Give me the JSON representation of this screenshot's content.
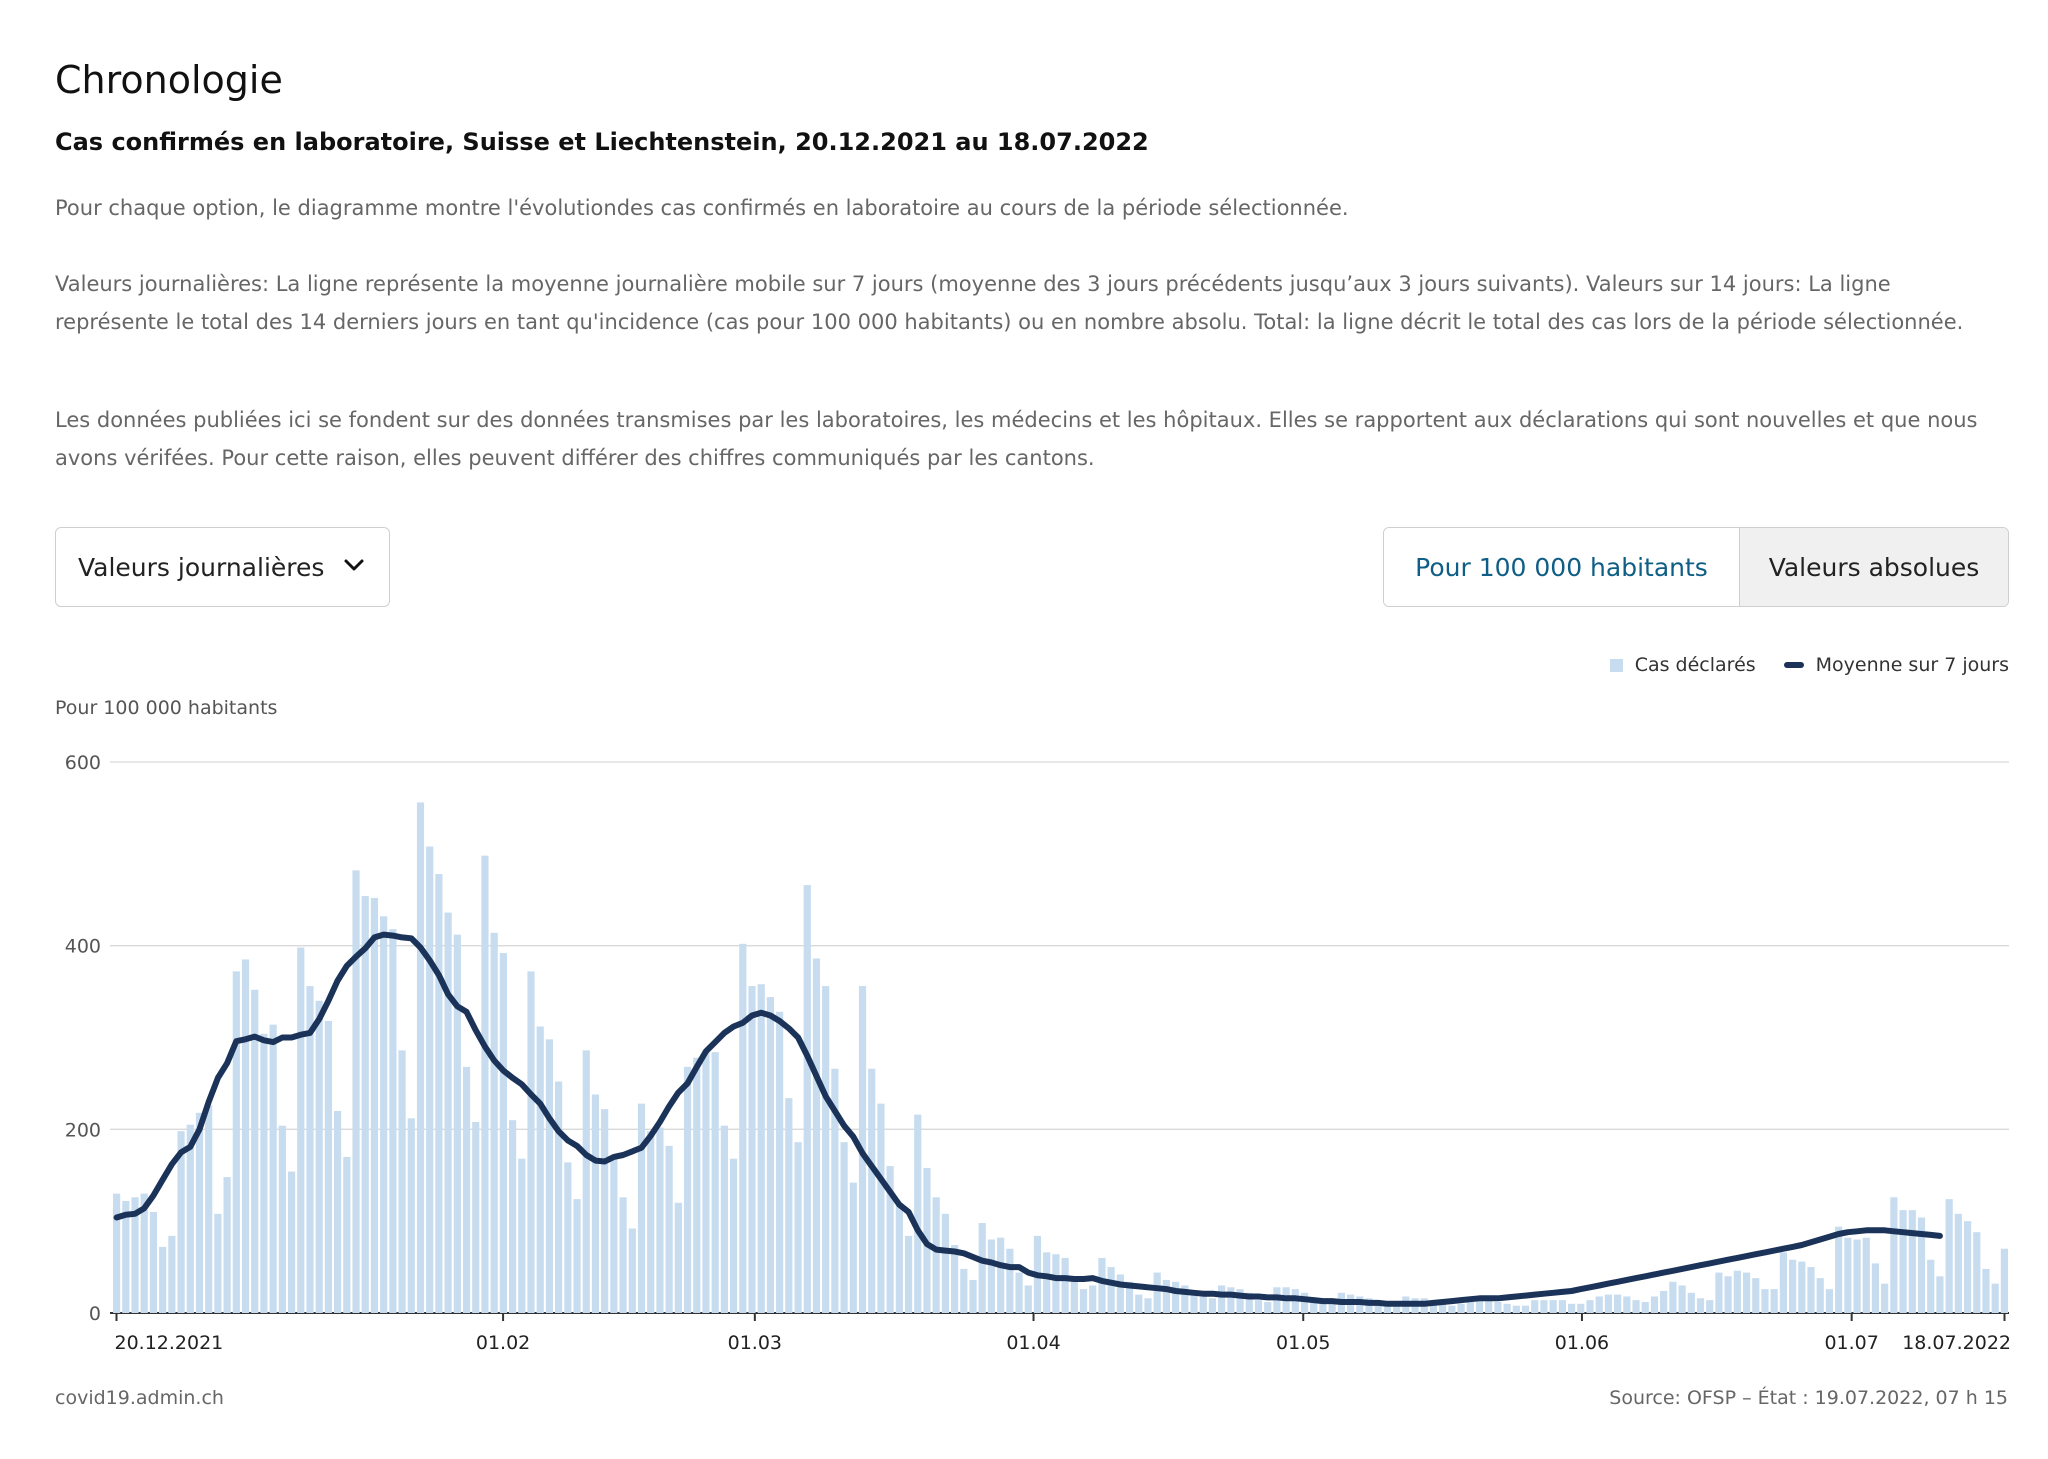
{
  "header": {
    "title": "Chronologie",
    "subtitle": "Cas confirmés en laboratoire, Suisse et Liechtenstein, 20.12.2021 au 18.07.2022"
  },
  "description": {
    "p1": "Pour chaque option, le diagramme montre l'évolutiondes cas confirmés en laboratoire au cours de la période sélectionnée.",
    "p2": "Valeurs journalières: La ligne représente la moyenne journalière mobile sur 7 jours (moyenne des 3 jours précédents jusqu’aux 3 jours suivants). Valeurs sur 14 jours: La ligne représente le total des 14 derniers jours en tant qu'incidence (cas pour 100 000 habitants) ou en nombre absolu. Total: la ligne décrit le total des cas lors de la période sélectionnée.",
    "p3": "Les données publiées ici se fondent sur des données transmises par les laboratoires, les médecins et les hôpitaux. Elles se rapportent aux déclarations qui sont nouvelles et que nous avons vérifées. Pour cette raison, elles peuvent différer des chiffres communiqués par les cantons."
  },
  "controls": {
    "dropdown_value": "Valeurs journalières",
    "toggle_option_1": "Pour 100 000 habitants",
    "toggle_option_2": "Valeurs absolues"
  },
  "legend": {
    "bars": "Cas déclarés",
    "line": "Moyenne sur 7 jours"
  },
  "footer": {
    "source_site": "covid19.admin.ch",
    "source": "Source: OFSP – État : 19.07.2022, 07 h 15"
  },
  "colors": {
    "bar": "#c7dcef",
    "line": "#1b3358",
    "active_toggle_text": "#0f5e86"
  },
  "chart_data": {
    "type": "bar",
    "ylabel": "Pour 100 000 habitants",
    "ylim": [
      0,
      600
    ],
    "yticks": [
      0,
      200,
      400,
      600
    ],
    "x_start": "2021-12-20",
    "x_end": "2022-07-18",
    "xticks": [
      {
        "date": "2021-12-20",
        "label": "20.12.2021"
      },
      {
        "date": "2022-02-01",
        "label": "01.02"
      },
      {
        "date": "2022-03-01",
        "label": "01.03"
      },
      {
        "date": "2022-04-01",
        "label": "01.04"
      },
      {
        "date": "2022-05-01",
        "label": "01.05"
      },
      {
        "date": "2022-06-01",
        "label": "01.06"
      },
      {
        "date": "2022-07-01",
        "label": "01.07"
      },
      {
        "date": "2022-07-18",
        "label": "18.07.2022"
      }
    ],
    "grid": true,
    "legend_position": "top-right",
    "series": [
      {
        "name": "Cas déclarés",
        "kind": "bar",
        "color": "#c7dcef",
        "values": [
          130,
          122,
          126,
          130,
          110,
          72,
          84,
          198,
          205,
          218,
          226,
          108,
          148,
          372,
          385,
          352,
          304,
          314,
          204,
          154,
          398,
          356,
          340,
          318,
          220,
          170,
          482,
          454,
          452,
          432,
          418,
          286,
          212,
          556,
          508,
          478,
          436,
          412,
          268,
          208,
          498,
          414,
          392,
          210,
          168,
          372,
          312,
          298,
          252,
          164,
          124,
          286,
          238,
          222,
          168,
          126,
          92,
          228,
          198,
          202,
          182,
          120,
          268,
          278,
          286,
          284,
          204,
          168,
          402,
          356,
          358,
          344,
          328,
          234,
          186,
          466,
          386,
          356,
          266,
          186,
          142,
          356,
          266,
          228,
          160,
          120,
          84,
          216,
          158,
          126,
          108,
          74,
          48,
          36,
          98,
          80,
          82,
          70,
          44,
          30,
          84,
          66,
          64,
          60,
          38,
          26,
          30,
          60,
          50,
          42,
          34,
          20,
          16,
          44,
          36,
          34,
          30,
          22,
          20,
          16,
          30,
          28,
          26,
          22,
          14,
          12,
          28,
          28,
          26,
          22,
          16,
          12,
          12,
          22,
          20,
          18,
          16,
          12,
          10,
          12,
          18,
          16,
          16,
          14,
          10,
          8,
          10,
          18,
          14,
          14,
          12,
          10,
          8,
          8,
          14,
          14,
          14,
          14,
          10,
          10,
          14,
          18,
          20,
          20,
          18,
          14,
          12,
          18,
          24,
          34,
          30,
          22,
          16,
          14,
          44,
          40,
          46,
          44,
          38,
          26,
          26,
          66,
          58,
          56,
          50,
          38,
          26,
          94,
          82,
          80,
          82,
          54,
          32,
          126,
          112,
          112,
          104,
          58,
          40,
          124,
          108,
          100,
          88,
          48,
          32,
          70
        ]
      },
      {
        "name": "Moyenne sur 7 jours",
        "kind": "line",
        "color": "#1b3358",
        "values": [
          104,
          107,
          108,
          114,
          128,
          145,
          162,
          175,
          181,
          200,
          230,
          256,
          272,
          296,
          298,
          301,
          297,
          295,
          300,
          300,
          303,
          305,
          320,
          340,
          362,
          378,
          388,
          397,
          409,
          412,
          411,
          409,
          408,
          398,
          384,
          368,
          347,
          334,
          328,
          308,
          290,
          275,
          264,
          256,
          249,
          238,
          228,
          212,
          198,
          188,
          182,
          172,
          166,
          165,
          170,
          172,
          176,
          180,
          193,
          208,
          225,
          240,
          250,
          268,
          285,
          295,
          305,
          312,
          316,
          324,
          327,
          324,
          318,
          310,
          300,
          280,
          258,
          236,
          220,
          204,
          192,
          174,
          160,
          146,
          132,
          118,
          110,
          90,
          75,
          69,
          68,
          67,
          65,
          61,
          57,
          55,
          52,
          50,
          50,
          44,
          41,
          40,
          38,
          38,
          37,
          37,
          38,
          35,
          33,
          31,
          30,
          29,
          28,
          27,
          26,
          24,
          23,
          22,
          21,
          21,
          20,
          20,
          19,
          18,
          18,
          17,
          17,
          16,
          16,
          15,
          14,
          13,
          13,
          12,
          12,
          12,
          11,
          11,
          10,
          10,
          10,
          10,
          10,
          11,
          12,
          13,
          14,
          15,
          16,
          16,
          16,
          17,
          18,
          19,
          20,
          21,
          22,
          23,
          24,
          26,
          28,
          30,
          32,
          34,
          36,
          38,
          40,
          42,
          44,
          46,
          48,
          50,
          52,
          54,
          56,
          58,
          60,
          62,
          64,
          66,
          68,
          70,
          72,
          74,
          77,
          80,
          83,
          86,
          88,
          89,
          90,
          90,
          90,
          89,
          88,
          87,
          86,
          85,
          84
        ]
      }
    ]
  }
}
